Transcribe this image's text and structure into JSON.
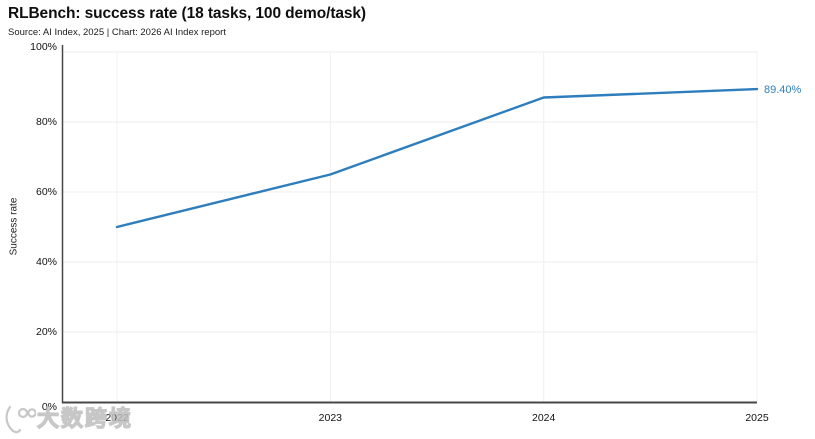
{
  "header": {
    "title": "RLBench: success rate (18 tasks, 100 demo/task)",
    "subtitle": "Source: AI Index, 2025 | Chart: 2026 AI Index report"
  },
  "chart_data": {
    "type": "line",
    "title": "RLBench: success rate (18 tasks, 100 demo/task)",
    "x": [
      2022,
      2023,
      2024,
      2025
    ],
    "xticks": [
      "2022",
      "2023",
      "2024",
      "2025"
    ],
    "series": [
      {
        "name": "Success rate",
        "values": [
          50,
          65,
          87,
          89.4
        ]
      }
    ],
    "end_label": "89.40%",
    "xlabel": "",
    "ylabel": "Success rate",
    "ylim": [
      0,
      100
    ],
    "yticks": [
      {
        "label": "0%",
        "value": 0
      },
      {
        "label": "20%",
        "value": 20
      },
      {
        "label": "40%",
        "value": 40
      },
      {
        "label": "60%",
        "value": 60
      },
      {
        "label": "80%",
        "value": 80
      },
      {
        "label": "100%",
        "value": 100
      }
    ],
    "grid": true,
    "legend": false,
    "line_color": "#2e7ebd"
  },
  "watermark": {
    "text": "大数跨境",
    "logo": "smiley-100-logo"
  },
  "colors": {
    "background": "#ffffff",
    "axis": "#474747",
    "gridline": "#ececec",
    "tick_text": "#111111",
    "accent": "#2e7ebd"
  }
}
